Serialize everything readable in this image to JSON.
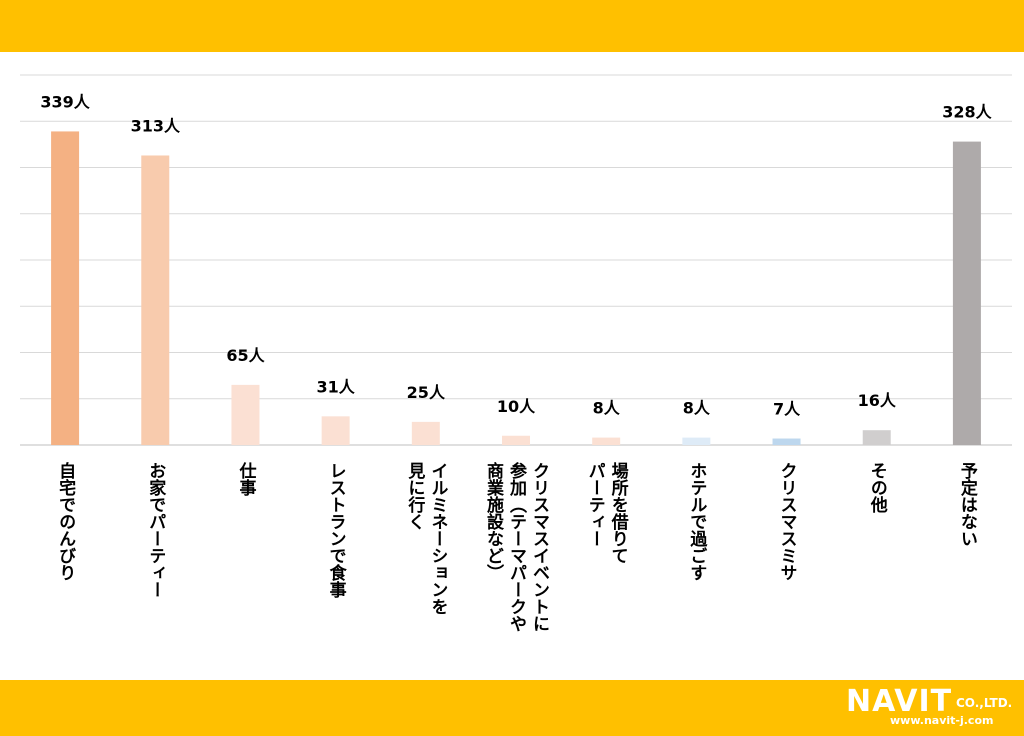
{
  "chart_data": {
    "type": "bar",
    "categories": [
      "自宅でのんびり",
      "お家でパーティー",
      "仕事",
      "レストランで食事",
      "イルミネーションを見に行く",
      "クリスマスイベントに参加（テーマパークや商業施設など）",
      "場所を借りてパーティー",
      "ホテルで過ごす",
      "クリスマスミサ",
      "その他",
      "予定はない"
    ],
    "category_lines": [
      [
        "自宅でのんびり"
      ],
      [
        "お家でパーティー"
      ],
      [
        "仕事"
      ],
      [
        "レストランで食事"
      ],
      [
        "イルミネーションを",
        "見に行く"
      ],
      [
        "クリスマスイベントに",
        "参加（テーマパークや",
        "商業施設など）"
      ],
      [
        "場所を借りて",
        "パーティー"
      ],
      [
        "ホテルで過ごす"
      ],
      [
        "クリスマスミサ"
      ],
      [
        "その他"
      ],
      [
        "予定はない"
      ]
    ],
    "values": [
      339,
      313,
      65,
      31,
      25,
      10,
      8,
      8,
      7,
      16,
      328
    ],
    "value_labels": [
      "339人",
      "313人",
      "65人",
      "31人",
      "25人",
      "10人",
      "8人",
      "8人",
      "7人",
      "16人",
      "328人"
    ],
    "colors": [
      "#f4b183",
      "#f8cbad",
      "#fbe0d3",
      "#fbe0d3",
      "#fbe0d3",
      "#fbe0d3",
      "#fbe0d3",
      "#deebf7",
      "#bdd7ee",
      "#d0cece",
      "#aeaaaa"
    ],
    "ylim": [
      0,
      400
    ],
    "grid": true,
    "title": "",
    "xlabel": "",
    "ylabel": ""
  },
  "logo": {
    "brand": "NAVIT",
    "suffix": "CO.,LTD.",
    "url": "www.navit-j.com"
  }
}
